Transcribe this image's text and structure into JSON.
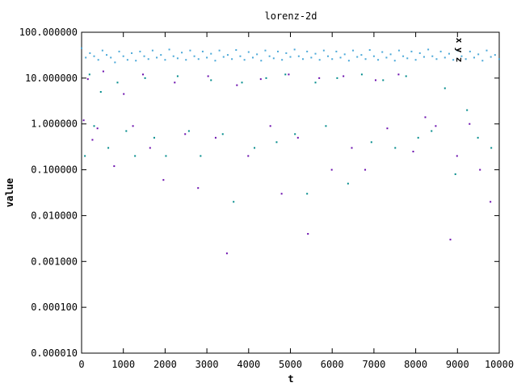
{
  "chart_data": {
    "type": "scatter",
    "title": "lorenz-2d",
    "xlabel": "t",
    "ylabel": "value",
    "xlim": [
      0,
      10000
    ],
    "ylim": [
      1e-05,
      100
    ],
    "yscale": "log",
    "grid": false,
    "legend_position": "top-right",
    "x_ticks": [
      "0",
      "1000",
      "2000",
      "3000",
      "4000",
      "5000",
      "6000",
      "7000",
      "8000",
      "9000",
      "10000"
    ],
    "y_ticks": [
      "0.000010",
      "0.000100",
      "0.001000",
      "0.010000",
      "0.100000",
      "1.000000",
      "10.000000",
      "100.000000"
    ],
    "series": [
      {
        "name": "x",
        "color": "#6a0dad",
        "sampled_points": [
          [
            50,
            1.2
          ],
          [
            150,
            9.5
          ],
          [
            260,
            0.45
          ],
          [
            380,
            0.8
          ],
          [
            520,
            14
          ],
          [
            780,
            0.12
          ],
          [
            1010,
            4.5
          ],
          [
            1230,
            0.9
          ],
          [
            1470,
            12
          ],
          [
            1640,
            0.3
          ],
          [
            1960,
            0.06
          ],
          [
            2230,
            8
          ],
          [
            2480,
            0.6
          ],
          [
            2790,
            0.04
          ],
          [
            3030,
            11
          ],
          [
            3210,
            0.5
          ],
          [
            3480,
            0.0015
          ],
          [
            3720,
            7
          ],
          [
            3990,
            0.2
          ],
          [
            4290,
            9.5
          ],
          [
            4520,
            0.9
          ],
          [
            4790,
            0.03
          ],
          [
            4960,
            12
          ],
          [
            5180,
            0.5
          ],
          [
            5420,
            0.004
          ],
          [
            5690,
            10
          ],
          [
            5990,
            0.1
          ],
          [
            6270,
            11
          ],
          [
            6470,
            0.3
          ],
          [
            6790,
            0.1
          ],
          [
            7040,
            9
          ],
          [
            7320,
            0.8
          ],
          [
            7590,
            12
          ],
          [
            7940,
            0.25
          ],
          [
            8230,
            1.4
          ],
          [
            8480,
            0.9
          ],
          [
            8830,
            0.003
          ],
          [
            8990,
            0.2
          ],
          [
            9290,
            1
          ],
          [
            9540,
            0.1
          ],
          [
            9790,
            0.02
          ]
        ]
      },
      {
        "name": "y",
        "color": "#008b8b",
        "sampled_points": [
          [
            80,
            0.2
          ],
          [
            190,
            12
          ],
          [
            300,
            0.9
          ],
          [
            460,
            5
          ],
          [
            640,
            0.3
          ],
          [
            860,
            8
          ],
          [
            1070,
            0.7
          ],
          [
            1280,
            0.2
          ],
          [
            1520,
            10
          ],
          [
            1740,
            0.5
          ],
          [
            2020,
            0.2
          ],
          [
            2300,
            11
          ],
          [
            2570,
            0.7
          ],
          [
            2850,
            0.2
          ],
          [
            3100,
            9
          ],
          [
            3380,
            0.6
          ],
          [
            3640,
            0.02
          ],
          [
            3840,
            8
          ],
          [
            4140,
            0.3
          ],
          [
            4420,
            10
          ],
          [
            4670,
            0.4
          ],
          [
            4880,
            12
          ],
          [
            5110,
            0.6
          ],
          [
            5400,
            0.03
          ],
          [
            5600,
            8
          ],
          [
            5850,
            0.9
          ],
          [
            6120,
            10
          ],
          [
            6380,
            0.05
          ],
          [
            6710,
            12
          ],
          [
            6940,
            0.4
          ],
          [
            7220,
            9
          ],
          [
            7510,
            0.3
          ],
          [
            7770,
            11
          ],
          [
            8060,
            0.5
          ],
          [
            8380,
            0.7
          ],
          [
            8700,
            6
          ],
          [
            8950,
            0.08
          ],
          [
            9230,
            2
          ],
          [
            9490,
            0.5
          ],
          [
            9810,
            0.3
          ]
        ]
      },
      {
        "name": "z",
        "color": "#4aa8d8",
        "sampled_points": [
          [
            0,
            45
          ],
          [
            100,
            28
          ],
          [
            200,
            35
          ],
          [
            300,
            30
          ],
          [
            400,
            25
          ],
          [
            500,
            40
          ],
          [
            600,
            32
          ],
          [
            700,
            28
          ],
          [
            800,
            22
          ],
          [
            900,
            38
          ],
          [
            1000,
            30
          ],
          [
            1100,
            25
          ],
          [
            1200,
            35
          ],
          [
            1300,
            24
          ],
          [
            1400,
            38
          ],
          [
            1500,
            30
          ],
          [
            1600,
            26
          ],
          [
            1700,
            40
          ],
          [
            1800,
            28
          ],
          [
            1900,
            32
          ],
          [
            2000,
            25
          ],
          [
            2100,
            42
          ],
          [
            2200,
            30
          ],
          [
            2300,
            27
          ],
          [
            2400,
            36
          ],
          [
            2500,
            25
          ],
          [
            2600,
            40
          ],
          [
            2700,
            30
          ],
          [
            2800,
            26
          ],
          [
            2900,
            38
          ],
          [
            3000,
            28
          ],
          [
            3100,
            34
          ],
          [
            3200,
            24
          ],
          [
            3300,
            40
          ],
          [
            3400,
            29
          ],
          [
            3500,
            32
          ],
          [
            3600,
            26
          ],
          [
            3700,
            41
          ],
          [
            3800,
            30
          ],
          [
            3900,
            25
          ],
          [
            4000,
            37
          ],
          [
            4100,
            28
          ],
          [
            4200,
            33
          ],
          [
            4300,
            24
          ],
          [
            4400,
            40
          ],
          [
            4500,
            30
          ],
          [
            4600,
            27
          ],
          [
            4700,
            38
          ],
          [
            4800,
            25
          ],
          [
            4900,
            35
          ],
          [
            5000,
            29
          ],
          [
            5100,
            42
          ],
          [
            5200,
            30
          ],
          [
            5300,
            26
          ],
          [
            5400,
            38
          ],
          [
            5500,
            28
          ],
          [
            5600,
            34
          ],
          [
            5700,
            25
          ],
          [
            5800,
            40
          ],
          [
            5900,
            30
          ],
          [
            6000,
            26
          ],
          [
            6100,
            38
          ],
          [
            6200,
            28
          ],
          [
            6300,
            33
          ],
          [
            6400,
            24
          ],
          [
            6500,
            40
          ],
          [
            6600,
            29
          ],
          [
            6700,
            32
          ],
          [
            6800,
            26
          ],
          [
            6900,
            41
          ],
          [
            7000,
            30
          ],
          [
            7100,
            25
          ],
          [
            7200,
            37
          ],
          [
            7300,
            28
          ],
          [
            7400,
            33
          ],
          [
            7500,
            24
          ],
          [
            7600,
            40
          ],
          [
            7700,
            30
          ],
          [
            7800,
            27
          ],
          [
            7900,
            38
          ],
          [
            8000,
            25
          ],
          [
            8100,
            35
          ],
          [
            8200,
            29
          ],
          [
            8300,
            42
          ],
          [
            8400,
            30
          ],
          [
            8500,
            26
          ],
          [
            8600,
            38
          ],
          [
            8700,
            28
          ],
          [
            8800,
            34
          ],
          [
            8900,
            25
          ],
          [
            9000,
            40
          ],
          [
            9100,
            30
          ],
          [
            9200,
            26
          ],
          [
            9300,
            38
          ],
          [
            9400,
            28
          ],
          [
            9500,
            33
          ],
          [
            9600,
            24
          ],
          [
            9700,
            40
          ],
          [
            9800,
            29
          ],
          [
            9900,
            32
          ],
          [
            10000,
            26
          ]
        ]
      }
    ]
  }
}
